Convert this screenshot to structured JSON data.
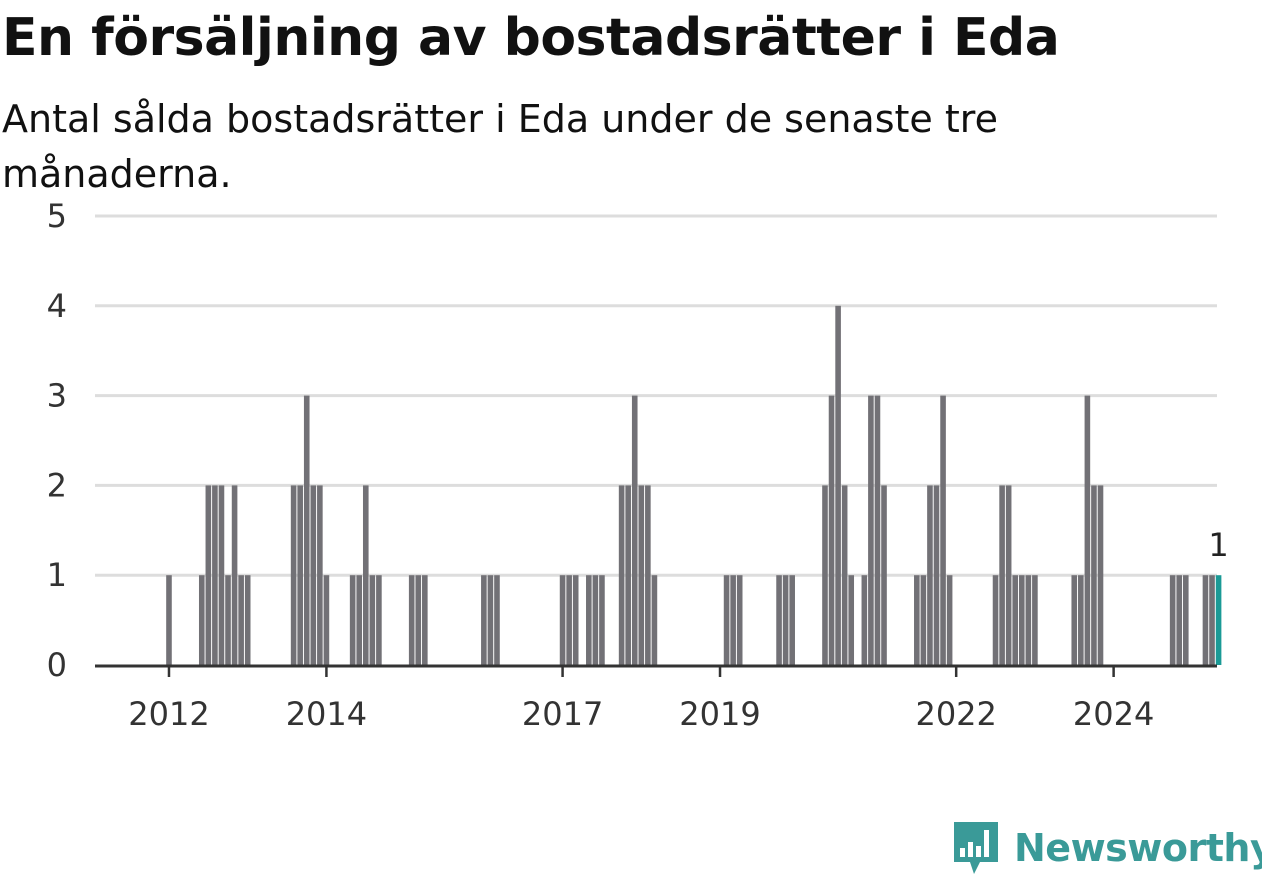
{
  "title": "En försäljning av bostadsrätter i Eda",
  "subtitle": "Antal sålda bostadsrätter i Eda under de senaste tre månaderna.",
  "brand": {
    "name": "Newsworthy"
  },
  "colors": {
    "bar": "#727176",
    "highlight": "#1a9a96",
    "grid": "#dddddd",
    "axis": "#333333",
    "brand": "#3a9a98"
  },
  "chart_data": {
    "type": "bar",
    "title": "En försäljning av bostadsrätter i Eda",
    "subtitle": "Antal sålda bostadsrätter i Eda under de senaste tre månaderna.",
    "xlabel": "",
    "ylabel": "",
    "ylim": [
      0,
      5
    ],
    "yticks": [
      0,
      1,
      2,
      3,
      4,
      5
    ],
    "xticks": [
      {
        "label": "2012",
        "index": 3
      },
      {
        "label": "2014",
        "index": 27
      },
      {
        "label": "2017",
        "index": 63
      },
      {
        "label": "2019",
        "index": 87
      },
      {
        "label": "2022",
        "index": 123
      },
      {
        "label": "2024",
        "index": 147
      }
    ],
    "grid": true,
    "start_month": "2011-10",
    "values": [
      0,
      0,
      0,
      1,
      0,
      0,
      0,
      0,
      1,
      2,
      2,
      2,
      1,
      2,
      1,
      1,
      0,
      0,
      0,
      0,
      0,
      0,
      2,
      2,
      3,
      2,
      2,
      1,
      0,
      0,
      0,
      1,
      1,
      2,
      1,
      1,
      0,
      0,
      0,
      0,
      1,
      1,
      1,
      0,
      0,
      0,
      0,
      0,
      0,
      0,
      0,
      1,
      1,
      1,
      0,
      0,
      0,
      0,
      0,
      0,
      0,
      0,
      0,
      1,
      1,
      1,
      0,
      1,
      1,
      1,
      0,
      0,
      2,
      2,
      3,
      2,
      2,
      1,
      0,
      0,
      0,
      0,
      0,
      0,
      0,
      0,
      0,
      0,
      1,
      1,
      1,
      0,
      0,
      0,
      0,
      0,
      1,
      1,
      1,
      0,
      0,
      0,
      0,
      2,
      3,
      4,
      2,
      1,
      0,
      1,
      3,
      3,
      2,
      0,
      0,
      0,
      0,
      1,
      1,
      2,
      2,
      3,
      1,
      0,
      0,
      0,
      0,
      0,
      0,
      1,
      2,
      2,
      1,
      1,
      1,
      1,
      0,
      0,
      0,
      0,
      0,
      1,
      1,
      3,
      2,
      2,
      0,
      0,
      0,
      0,
      0,
      0,
      0,
      0,
      0,
      0,
      1,
      1,
      1,
      0,
      0,
      1,
      1,
      1
    ],
    "highlight_last": true,
    "annotation": "1"
  }
}
